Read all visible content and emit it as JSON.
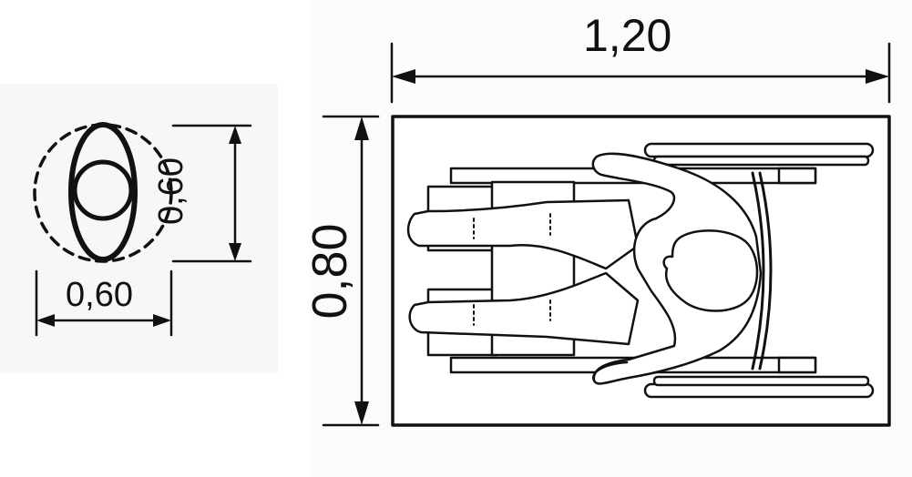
{
  "dimensions": {
    "width_total": "1,20",
    "depth_total": "0,80",
    "person_width": "0,60",
    "person_depth": "0,60"
  },
  "colors": {
    "line": "#111111",
    "background": "#ffffff"
  },
  "icons": [
    "standing-person-plan-icon",
    "wheelchair-user-plan-icon"
  ]
}
